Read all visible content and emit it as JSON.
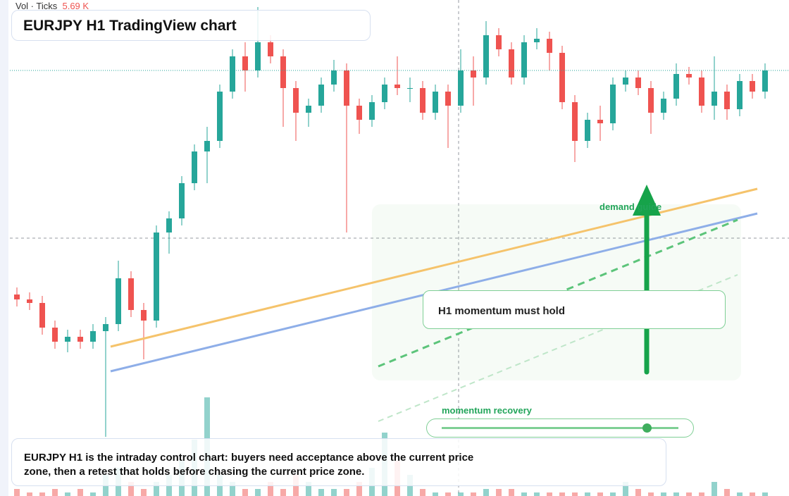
{
  "chart_data": {
    "type": "candlestick",
    "title": "EURJPY H1 TradingView chart",
    "volume_label": "Vol · Ticks",
    "volume_value": "5.69 K",
    "annotations": [
      "demand guide",
      "H1 momentum must hold",
      "momentum recovery"
    ],
    "caption_lines": [
      "EURJPY H1 is the intraday control chart: buyers need acceptance above the current price",
      "zone, then a retest that holds before chasing the current price zone."
    ],
    "open": [
      28.6,
      27.9,
      27.4,
      23.9,
      21.9,
      22.6,
      21.9,
      23.4,
      24.4,
      30.9,
      26.4,
      24.9,
      37.4,
      39.4,
      44.4,
      48.9,
      50.4,
      57.4,
      62.4,
      60.4,
      64.4,
      62.4,
      57.9,
      54.4,
      55.4,
      58.4,
      60.4,
      55.4,
      53.4,
      55.9,
      58.4,
      57.9,
      57.9,
      54.4,
      57.4,
      55.4,
      60.4,
      59.4,
      65.4,
      63.4,
      59.4,
      64.4,
      64.9,
      62.9,
      55.9,
      50.4,
      53.4,
      52.9,
      58.4,
      59.4,
      57.9,
      54.4,
      56.4,
      59.9,
      59.4,
      55.4,
      57.4,
      54.9,
      58.9,
      57.4
    ],
    "high": [
      29.6,
      28.9,
      28.4,
      24.9,
      23.6,
      23.6,
      24.4,
      25.4,
      33.4,
      31.9,
      27.4,
      38.4,
      40.4,
      45.4,
      49.9,
      52.4,
      58.4,
      63.4,
      64.4,
      69.4,
      65.4,
      63.4,
      58.9,
      56.4,
      59.4,
      61.9,
      61.4,
      56.4,
      56.9,
      59.4,
      62.4,
      59.4,
      58.9,
      58.4,
      58.4,
      63.4,
      62.4,
      67.4,
      66.4,
      64.4,
      65.4,
      66.4,
      65.9,
      63.9,
      56.9,
      54.4,
      55.4,
      59.4,
      60.4,
      60.4,
      58.9,
      57.4,
      61.4,
      60.9,
      60.4,
      62.4,
      58.4,
      59.9,
      59.9,
      61.4
    ],
    "low": [
      26.9,
      26.4,
      22.9,
      20.9,
      20.4,
      20.9,
      20.9,
      8.4,
      23.4,
      25.4,
      19.4,
      23.9,
      34.4,
      38.4,
      43.4,
      44.4,
      49.4,
      56.4,
      57.4,
      59.4,
      61.4,
      52.4,
      50.4,
      52.4,
      54.4,
      57.4,
      37.4,
      51.4,
      52.4,
      54.9,
      56.9,
      55.9,
      53.4,
      53.4,
      49.4,
      54.4,
      55.4,
      58.4,
      62.4,
      58.4,
      58.4,
      63.4,
      60.4,
      54.9,
      47.4,
      49.4,
      50.4,
      51.9,
      57.4,
      56.9,
      51.4,
      53.4,
      55.4,
      58.4,
      54.4,
      53.4,
      53.4,
      53.9,
      56.4,
      56.4
    ],
    "close": [
      27.9,
      27.4,
      23.9,
      21.9,
      22.6,
      21.9,
      23.4,
      24.4,
      30.9,
      26.4,
      24.9,
      37.4,
      39.4,
      44.4,
      48.9,
      50.4,
      57.4,
      62.4,
      60.4,
      64.4,
      62.4,
      57.9,
      54.4,
      55.4,
      58.4,
      60.4,
      55.4,
      53.4,
      55.9,
      58.4,
      57.9,
      57.9,
      54.4,
      57.4,
      55.4,
      60.4,
      59.4,
      65.4,
      63.4,
      59.4,
      64.4,
      64.9,
      62.9,
      55.9,
      50.4,
      53.4,
      52.9,
      58.4,
      59.4,
      57.9,
      54.4,
      56.4,
      59.9,
      59.4,
      55.4,
      57.4,
      54.9,
      58.9,
      57.4,
      60.4
    ],
    "volume": [
      1,
      0.5,
      0.5,
      1,
      0.5,
      1,
      0.5,
      3,
      4,
      2,
      1,
      2,
      3,
      5,
      8,
      14,
      3,
      2,
      1,
      1,
      2,
      1,
      3,
      2,
      1,
      1,
      1,
      2,
      4,
      9,
      5,
      3,
      1,
      0.5,
      0.5,
      0.5,
      0.5,
      1,
      1,
      1,
      0.5,
      0.5,
      0.5,
      0.5,
      0.5,
      0.5,
      0.5,
      0.5,
      2,
      1,
      0.5,
      0.5,
      0.5,
      0.5,
      0.5,
      2,
      1,
      0.5,
      0.5,
      0.5
    ],
    "ylim": [
      0,
      70.4
    ],
    "volume_ylim": [
      0,
      20
    ],
    "up_color": "#26a69a",
    "down_color": "#ef5350"
  }
}
